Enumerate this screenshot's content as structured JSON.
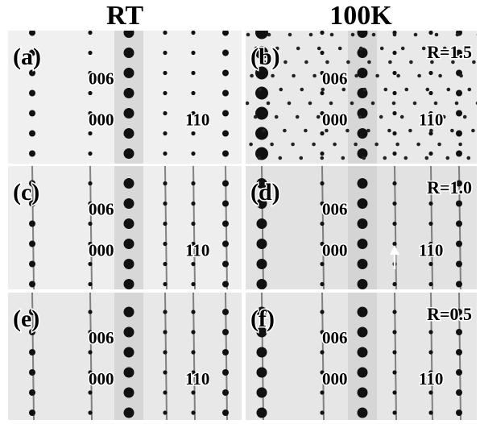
{
  "column_headers": [
    "RT",
    "100K"
  ],
  "panels": [
    {
      "label": "(a)",
      "indices": [
        "006",
        "000",
        "110"
      ]
    },
    {
      "label": "(b)",
      "ratio": "R=1.5",
      "indices": [
        "006",
        "000",
        "110"
      ]
    },
    {
      "label": "(c)",
      "indices": [
        "006",
        "000",
        "110"
      ]
    },
    {
      "label": "(d)",
      "ratio": "R=1.0",
      "indices": [
        "006",
        "000",
        "110"
      ]
    },
    {
      "label": "(e)",
      "indices": [
        "006",
        "000",
        "110"
      ]
    },
    {
      "label": "(f)",
      "ratio": "R=0.5",
      "indices": [
        "006",
        "000",
        "110"
      ]
    }
  ]
}
